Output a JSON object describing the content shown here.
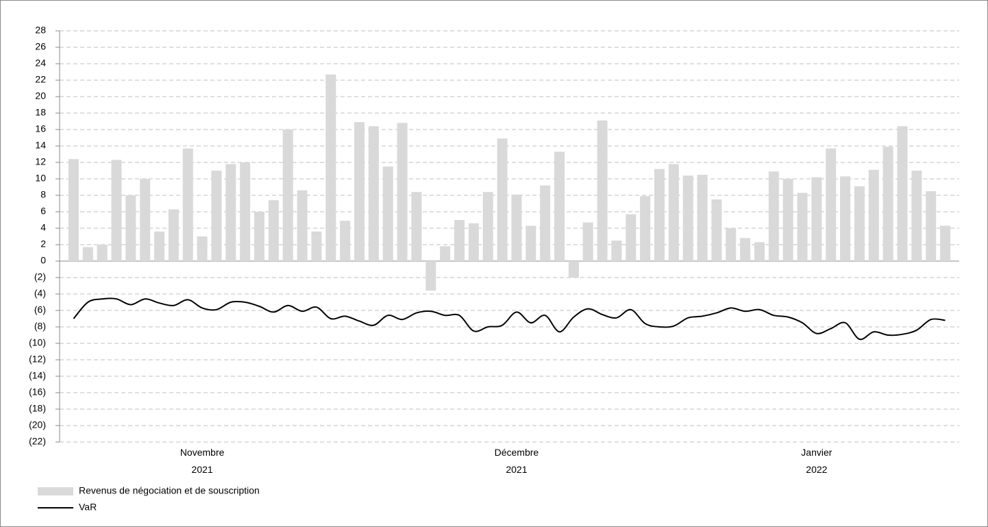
{
  "chart_data": {
    "type": "bar_line",
    "categories": [
      null,
      null,
      null,
      null,
      null,
      null,
      null,
      null,
      null,
      "Novembre 2021",
      null,
      null,
      null,
      null,
      null,
      null,
      null,
      null,
      null,
      null,
      null,
      null,
      null,
      null,
      null,
      null,
      null,
      null,
      null,
      null,
      null,
      "Décembre 2021",
      null,
      null,
      null,
      null,
      null,
      null,
      null,
      null,
      null,
      null,
      null,
      null,
      null,
      null,
      null,
      null,
      null,
      null,
      null,
      null,
      "Janvier 2022",
      null,
      null,
      null,
      null,
      null,
      null,
      null,
      null,
      null
    ],
    "series": [
      {
        "name": "Revenus de négociation et de souscription",
        "type": "bar",
        "color": "#d9d9d9",
        "values": [
          12.4,
          1.7,
          2.0,
          12.3,
          8.0,
          10.0,
          3.6,
          6.3,
          13.7,
          3.0,
          11.0,
          11.8,
          12.0,
          6.0,
          7.4,
          16.0,
          8.6,
          3.6,
          22.7,
          4.9,
          16.9,
          16.4,
          11.5,
          16.8,
          8.4,
          -3.6,
          1.8,
          5.0,
          4.6,
          8.4,
          14.9,
          8.1,
          4.3,
          9.2,
          13.3,
          -2.0,
          4.7,
          17.1,
          2.5,
          5.7,
          7.9,
          11.2,
          11.8,
          10.4,
          10.5,
          7.5,
          4.0,
          2.8,
          2.3,
          10.9,
          10.0,
          8.3,
          10.2,
          13.7,
          10.3,
          9.1,
          11.1,
          13.9,
          16.4,
          11.0,
          8.5,
          4.3
        ]
      },
      {
        "name": "VaR",
        "type": "line",
        "color": "#000000",
        "values": [
          -7.0,
          -5.0,
          -4.6,
          -4.6,
          -5.3,
          -4.6,
          -5.1,
          -5.4,
          -4.7,
          -5.7,
          -5.9,
          -5.0,
          -5.0,
          -5.5,
          -6.2,
          -5.4,
          -6.1,
          -5.6,
          -7.0,
          -6.7,
          -7.3,
          -7.8,
          -6.6,
          -7.1,
          -6.3,
          -6.1,
          -6.6,
          -6.6,
          -8.5,
          -8.0,
          -7.8,
          -6.2,
          -7.5,
          -6.6,
          -8.6,
          -6.8,
          -5.8,
          -6.5,
          -6.9,
          -5.9,
          -7.6,
          -8.0,
          -7.9,
          -6.9,
          -6.7,
          -6.3,
          -5.7,
          -6.1,
          -5.9,
          -6.6,
          -6.8,
          -7.5,
          -8.8,
          -8.2,
          -7.5,
          -9.5,
          -8.6,
          -9.0,
          -8.9,
          -8.4,
          -7.1,
          -7.2
        ]
      }
    ],
    "ylim": [
      -22,
      28
    ],
    "yticks": [
      28,
      26,
      24,
      22,
      20,
      18,
      16,
      14,
      12,
      10,
      8,
      6,
      4,
      2,
      0,
      {
        "value": -2,
        "label": "(2)"
      },
      {
        "value": -4,
        "label": "(4)"
      },
      {
        "value": -6,
        "label": "(6)"
      },
      {
        "value": -8,
        "label": "(8)"
      },
      {
        "value": -10,
        "label": "(10)"
      },
      {
        "value": -12,
        "label": "(12)"
      },
      {
        "value": -14,
        "label": "(14)"
      },
      {
        "value": -16,
        "label": "(16)"
      },
      {
        "value": -18,
        "label": "(18)"
      },
      {
        "value": -20,
        "label": "(20)"
      },
      {
        "value": -22,
        "label": "(22)"
      }
    ],
    "grid": true,
    "legend": "bottom-left"
  }
}
